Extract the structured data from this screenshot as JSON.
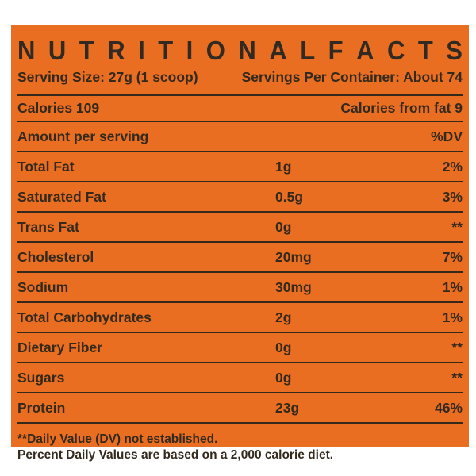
{
  "label": {
    "title": "NUTRITIONAL FACTS",
    "serving": {
      "size": "Serving Size: 27g (1 scoop)",
      "per_container": "Servings Per Container: About 74"
    },
    "calories": {
      "left": "Calories 109",
      "right": "Calories from fat 9"
    },
    "columns": {
      "amount_header": "Amount per serving",
      "dv_header": "%DV"
    },
    "rows": [
      {
        "name": "Total Fat",
        "amount": "1g",
        "dv": "2%"
      },
      {
        "name": "Saturated Fat",
        "amount": "0.5g",
        "dv": "3%"
      },
      {
        "name": "Trans Fat",
        "amount": "0g",
        "dv": "**"
      },
      {
        "name": "Cholesterol",
        "amount": "20mg",
        "dv": "7%"
      },
      {
        "name": "Sodium",
        "amount": "30mg",
        "dv": "1%"
      },
      {
        "name": "Total Carbohydrates",
        "amount": "2g",
        "dv": "1%"
      },
      {
        "name": "Dietary Fiber",
        "amount": "0g",
        "dv": "**"
      },
      {
        "name": "Sugars",
        "amount": "0g",
        "dv": "**"
      },
      {
        "name": "Protein",
        "amount": "23g",
        "dv": "46%"
      }
    ],
    "footnotes": {
      "line1": "**Daily Value (DV) not established.",
      "line2": "Percent Daily Values are based on a 2,000 calorie diet."
    },
    "colors": {
      "background": "#EA6E21",
      "text": "#33291C",
      "page": "#FFFFFF"
    }
  }
}
